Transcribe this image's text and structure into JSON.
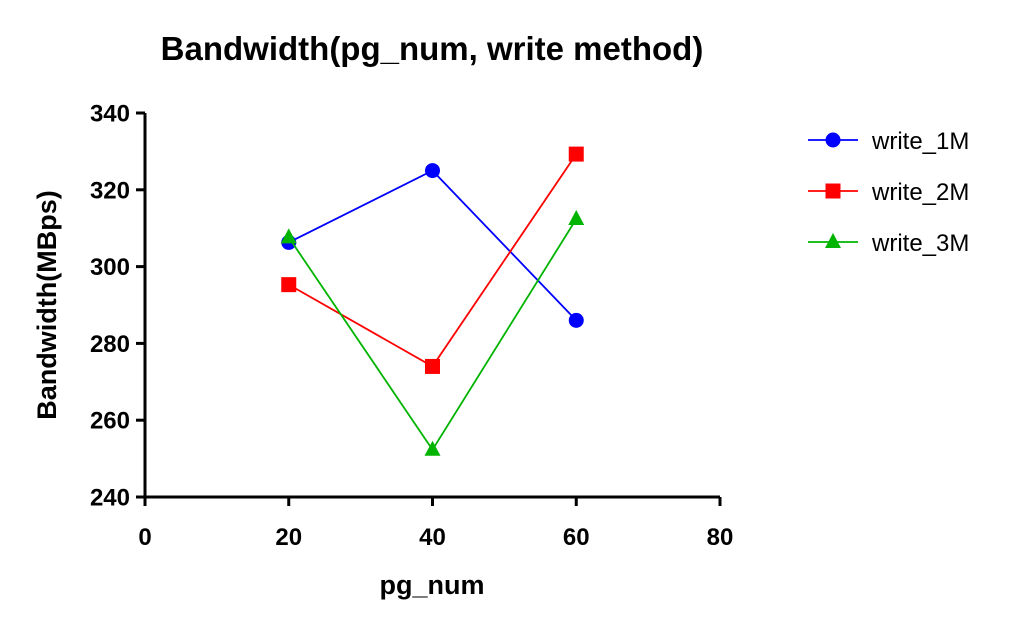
{
  "chart_data": {
    "type": "line",
    "title": "Bandwidth(pg_num, write method)",
    "xlabel": "pg_num",
    "ylabel": "Bandwidth(MBps)",
    "xlim": [
      0,
      80
    ],
    "ylim": [
      240,
      340
    ],
    "xticks": [
      0,
      20,
      40,
      60,
      80
    ],
    "yticks": [
      240,
      260,
      280,
      300,
      320,
      340
    ],
    "x": [
      20,
      40,
      60
    ],
    "grid": false,
    "legend_position": "right",
    "series": [
      {
        "name": "write_1M",
        "values": [
          306.3,
          325,
          286
        ],
        "color": "#0000ff",
        "marker": "circle"
      },
      {
        "name": "write_2M",
        "values": [
          295.3,
          274,
          329.3
        ],
        "color": "#ff0000",
        "marker": "square"
      },
      {
        "name": "write_3M",
        "values": [
          307.6,
          252.3,
          312.4
        ],
        "color": "#00b400",
        "marker": "triangle"
      }
    ]
  }
}
